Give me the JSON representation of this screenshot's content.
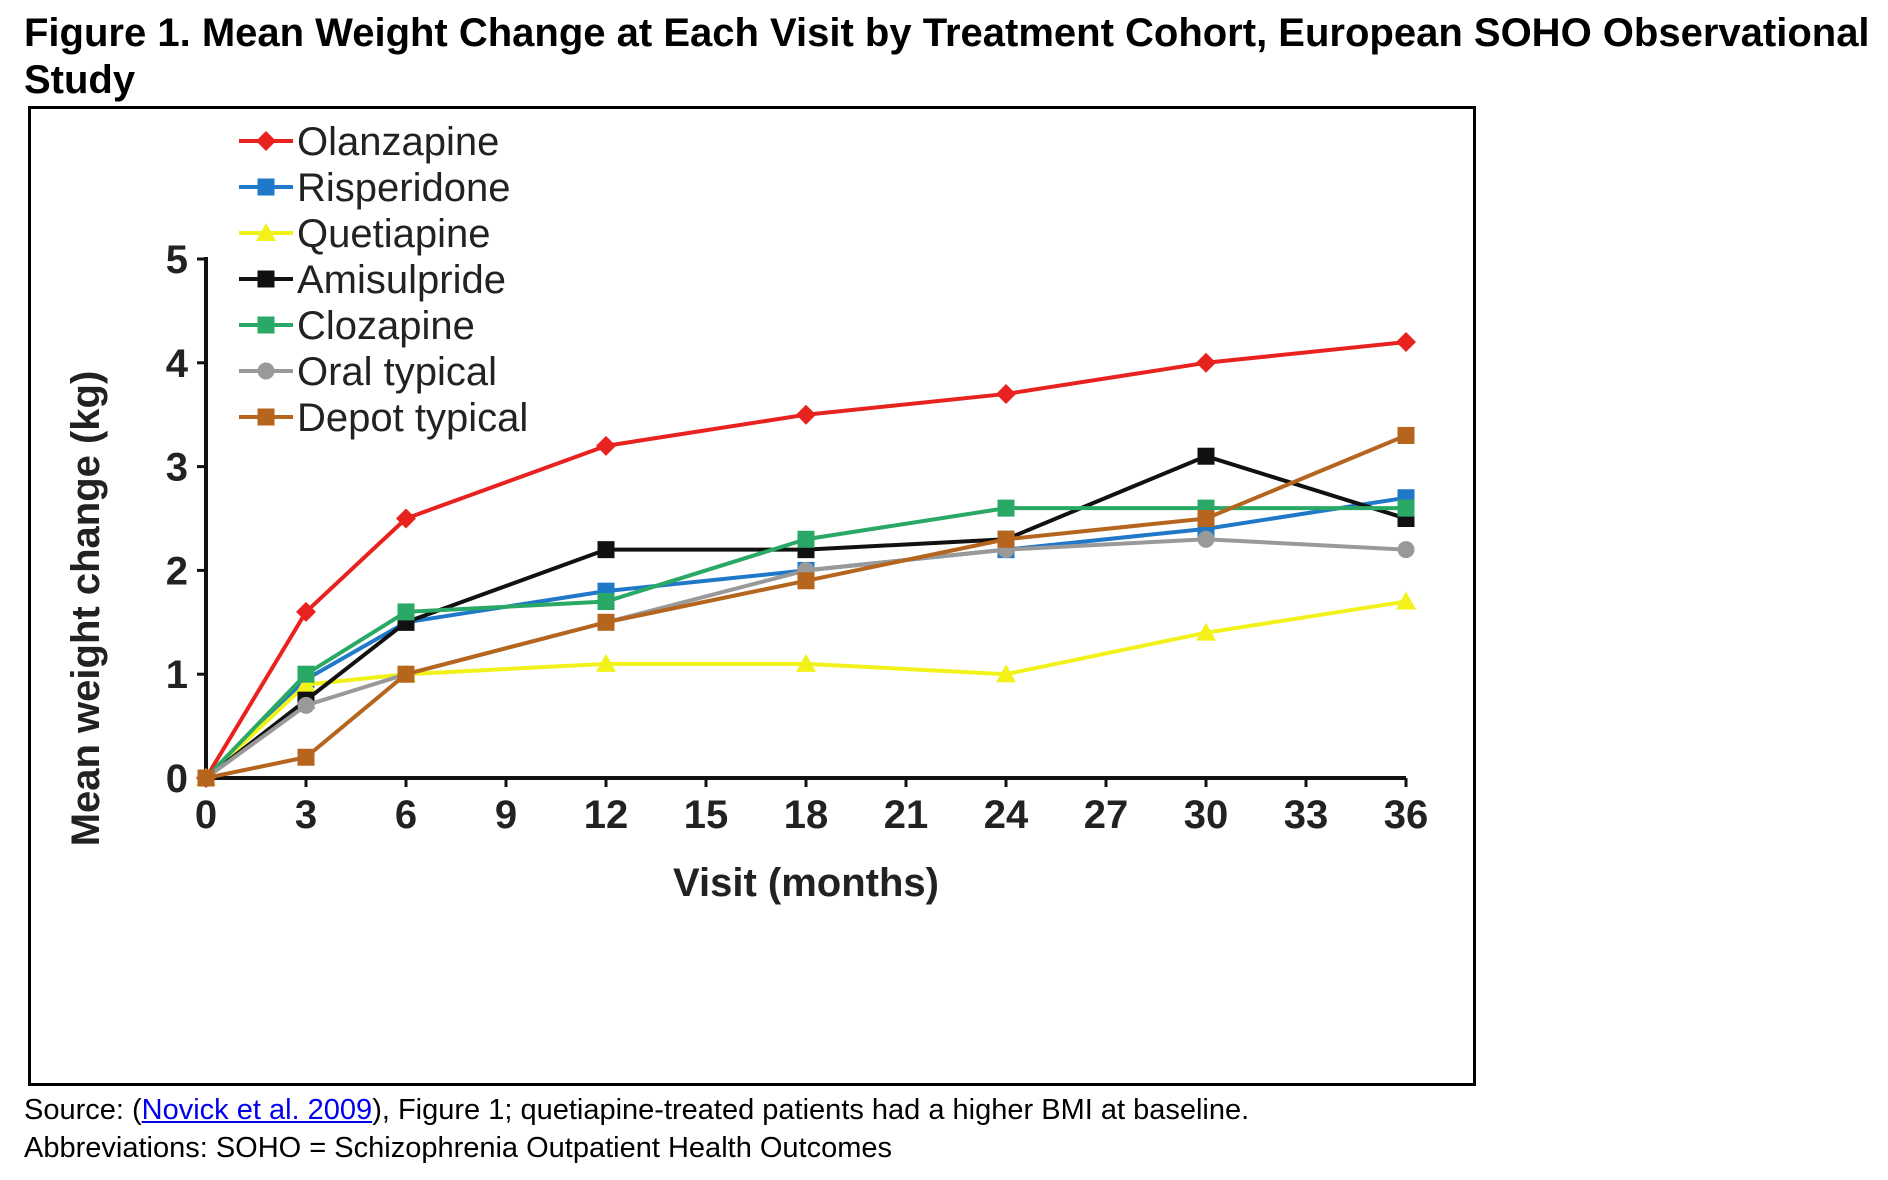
{
  "figure": {
    "title": "Figure 1. Mean Weight Change at Each Visit by Treatment Cohort, European SOHO Observational Study"
  },
  "footnotes": {
    "source_prefix": "Source: (",
    "source_link": "Novick et al. 2009",
    "source_suffix": "), Figure 1; quetiapine-treated patients had a higher BMI at baseline.",
    "abbreviations": "Abbreviations: SOHO = Schizophrenia Outpatient Health Outcomes"
  },
  "chart_data": {
    "type": "line",
    "title": "",
    "xlabel": "Visit (months)",
    "ylabel": "Mean weight change (kg)",
    "x": [
      0,
      3,
      6,
      12,
      18,
      24,
      30,
      36
    ],
    "xticks": [
      0,
      3,
      6,
      9,
      12,
      15,
      18,
      21,
      24,
      27,
      30,
      33,
      36
    ],
    "yticks": [
      0,
      1,
      2,
      3,
      4,
      5
    ],
    "xlim": [
      0,
      36
    ],
    "ylim": [
      0,
      5
    ],
    "grid": false,
    "legend_position": "top-left",
    "series": [
      {
        "name": "Olanzapine",
        "color": "#e8231f",
        "marker": "diamond",
        "values": [
          0,
          1.6,
          2.5,
          3.2,
          3.5,
          3.7,
          4.0,
          4.2
        ]
      },
      {
        "name": "Risperidone",
        "color": "#1f78c8",
        "marker": "square",
        "values": [
          0,
          0.95,
          1.5,
          1.8,
          2.0,
          2.2,
          2.4,
          2.7
        ]
      },
      {
        "name": "Quetiapine",
        "color": "#f2f21a",
        "marker": "triangle",
        "values": [
          0,
          0.9,
          1.0,
          1.1,
          1.1,
          1.0,
          1.4,
          1.7
        ]
      },
      {
        "name": "Amisulpride",
        "color": "#111111",
        "marker": "square",
        "values": [
          0,
          0.75,
          1.5,
          2.2,
          2.2,
          2.3,
          3.1,
          2.5
        ]
      },
      {
        "name": "Clozapine",
        "color": "#2aa866",
        "marker": "square",
        "values": [
          0,
          1.0,
          1.6,
          1.7,
          2.3,
          2.6,
          2.6,
          2.6
        ]
      },
      {
        "name": "Oral typical",
        "color": "#999999",
        "marker": "circle",
        "values": [
          0,
          0.7,
          1.0,
          1.5,
          2.0,
          2.2,
          2.3,
          2.2
        ]
      },
      {
        "name": "Depot typical",
        "color": "#b5651d",
        "marker": "square",
        "values": [
          0,
          0.2,
          1.0,
          1.5,
          1.9,
          2.3,
          2.5,
          3.3
        ]
      }
    ]
  }
}
